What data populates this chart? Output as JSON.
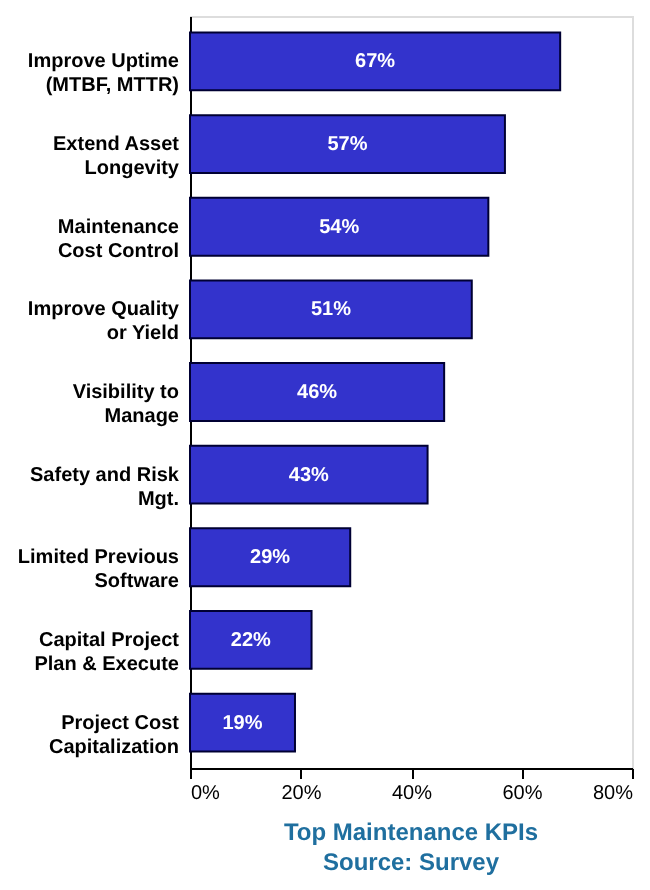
{
  "chart_data": {
    "type": "bar",
    "orientation": "horizontal",
    "title": "Top Maintenance KPIs",
    "annotations": [
      "Source: Survey"
    ],
    "categories": [
      "Improve Uptime\n(MTBF, MTTR)",
      "Extend Asset\nLongevity",
      "Maintenance\nCost Control",
      "Improve Quality\nor Yield",
      "Visibility to\nManage",
      "Safety and Risk\nMgt.",
      "Limited Previous\nSoftware",
      "Capital Project\nPlan & Execute",
      "Project Cost\nCapitalization"
    ],
    "values": [
      67,
      57,
      54,
      51,
      46,
      43,
      29,
      22,
      19
    ],
    "value_labels": [
      "67%",
      "57%",
      "54%",
      "51%",
      "46%",
      "43%",
      "29%",
      "22%",
      "19%"
    ],
    "color": "#3333cc",
    "xlim": [
      0,
      80
    ],
    "xticks": [
      {
        "value": 0,
        "label": "0%"
      },
      {
        "value": 20,
        "label": "20%"
      },
      {
        "value": 40,
        "label": "40%"
      },
      {
        "value": 60,
        "label": "60%"
      },
      {
        "value": 80,
        "label": "80%"
      }
    ],
    "grid": false
  }
}
